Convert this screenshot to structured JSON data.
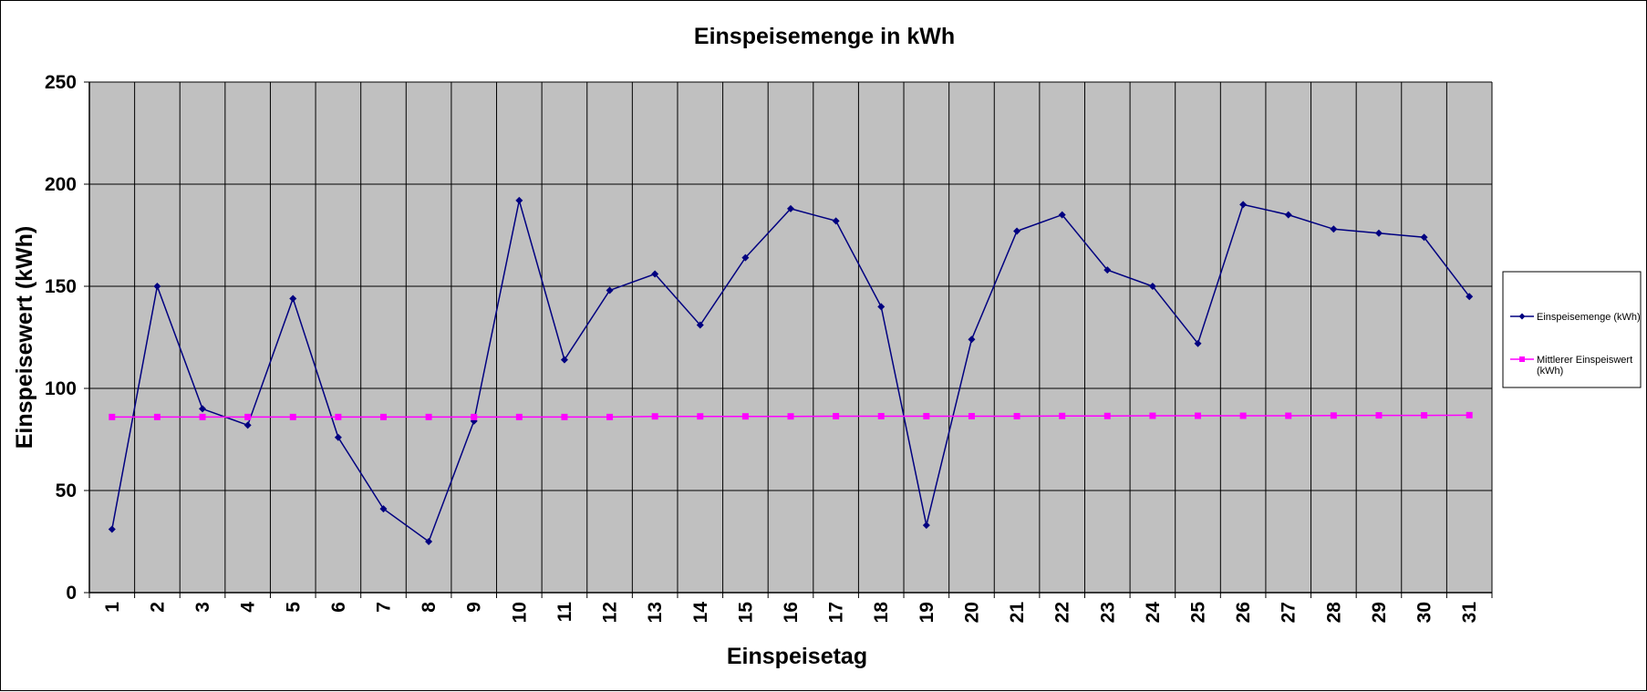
{
  "chart_data": {
    "type": "line",
    "title": "Einspeisemenge in kWh",
    "xlabel": "Einspeisetag",
    "ylabel": "Einspeisewert  (kWh)",
    "ylim": [
      0,
      250
    ],
    "yticks": [
      0,
      50,
      100,
      150,
      200,
      250
    ],
    "grid": true,
    "legend_position": "right",
    "plot_background": "#c0c0c0",
    "categories": [
      "1",
      "2",
      "3",
      "4",
      "5",
      "6",
      "7",
      "8",
      "9",
      "10",
      "11",
      "12",
      "13",
      "14",
      "15",
      "16",
      "17",
      "18",
      "19",
      "20",
      "21",
      "22",
      "23",
      "24",
      "25",
      "26",
      "27",
      "28",
      "29",
      "30",
      "31"
    ],
    "series": [
      {
        "name": "Einspeisemenge (kWh)",
        "color": "#000080",
        "marker": "diamond",
        "values": [
          31,
          150,
          90,
          82,
          144,
          76,
          41,
          25,
          84,
          192,
          114,
          148,
          156,
          131,
          164,
          188,
          182,
          140,
          33,
          124,
          177,
          185,
          158,
          150,
          122,
          190,
          185,
          178,
          176,
          174,
          145
        ]
      },
      {
        "name": "Mittlerer Einspeiswert (kWh)",
        "legend_lines": [
          "Mittlerer Einspeiswert",
          "(kWh)"
        ],
        "color": "#ff00ff",
        "marker": "square",
        "values": [
          86,
          86,
          86,
          86,
          86,
          86,
          86,
          86,
          86,
          86,
          86,
          86,
          86.3,
          86.3,
          86.3,
          86.3,
          86.4,
          86.4,
          86.4,
          86.4,
          86.4,
          86.5,
          86.5,
          86.6,
          86.6,
          86.6,
          86.6,
          86.7,
          86.8,
          86.8,
          86.9
        ]
      }
    ]
  }
}
